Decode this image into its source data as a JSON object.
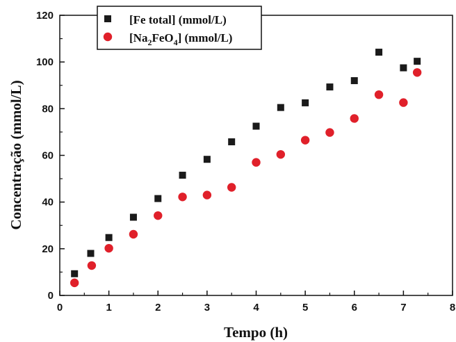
{
  "chart_data": {
    "type": "scatter",
    "xlabel": "Tempo (h)",
    "ylabel": "Concentração (mmol/L)",
    "xlim": [
      0,
      8
    ],
    "ylim": [
      0,
      120
    ],
    "xticks": [
      "0",
      "1",
      "2",
      "3",
      "4",
      "5",
      "6",
      "7",
      "8"
    ],
    "yticks": [
      "0",
      "20",
      "40",
      "60",
      "80",
      "100",
      "120"
    ],
    "grid": false,
    "legend_position": "top-left",
    "series": [
      {
        "name": "[Fe total] (mmol/L)",
        "marker": "square",
        "color": "#1a1a1a",
        "points": [
          [
            0.3,
            9.3
          ],
          [
            0.63,
            18.0
          ],
          [
            1.0,
            24.8
          ],
          [
            1.5,
            33.5
          ],
          [
            2.0,
            41.5
          ],
          [
            2.5,
            51.5
          ],
          [
            3.0,
            58.3
          ],
          [
            3.5,
            65.8
          ],
          [
            4.0,
            72.5
          ],
          [
            4.5,
            80.5
          ],
          [
            5.0,
            82.5
          ],
          [
            5.5,
            89.3
          ],
          [
            6.0,
            92.0
          ],
          [
            6.5,
            104.2
          ],
          [
            7.0,
            97.5
          ],
          [
            7.28,
            100.3
          ]
        ]
      },
      {
        "name": "[Na2FeO4] (mmol/L)",
        "marker": "circle",
        "color": "#e0202a",
        "points": [
          [
            0.3,
            5.4
          ],
          [
            0.65,
            12.8
          ],
          [
            1.0,
            20.2
          ],
          [
            1.5,
            26.2
          ],
          [
            2.0,
            34.2
          ],
          [
            2.5,
            42.2
          ],
          [
            3.0,
            43.0
          ],
          [
            3.5,
            46.3
          ],
          [
            4.0,
            57.0
          ],
          [
            4.5,
            60.4
          ],
          [
            5.0,
            66.5
          ],
          [
            5.5,
            69.8
          ],
          [
            6.0,
            75.8
          ],
          [
            6.5,
            86.0
          ],
          [
            7.0,
            82.6
          ],
          [
            7.28,
            95.5
          ]
        ]
      }
    ]
  }
}
